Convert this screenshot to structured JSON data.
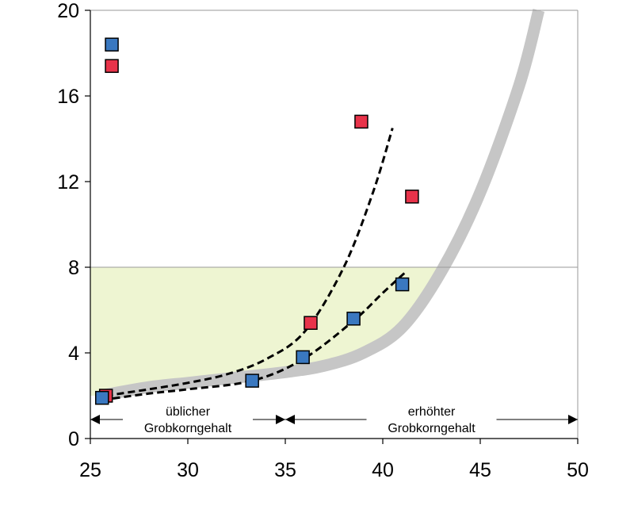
{
  "chart_data": {
    "type": "scatter",
    "title": "",
    "xlabel": "",
    "ylabel": "",
    "xlim": [
      25,
      50
    ],
    "ylim": [
      0,
      20
    ],
    "x_ticks": [
      "25",
      "30",
      "35",
      "40",
      "45",
      "50"
    ],
    "y_ticks": [
      "0",
      "4",
      "8",
      "12",
      "16",
      "20"
    ],
    "grid": false,
    "colors": {
      "red_marker": "#e8334a",
      "blue_marker": "#3a78c0",
      "shaded_region": "#eef5d2",
      "gray_boundary": "#c6c6c6",
      "dashed_fit": "#000000"
    },
    "series": [
      {
        "marker": "red-square",
        "points": [
          [
            25.8,
            2.0
          ],
          [
            26.1,
            17.4
          ],
          [
            36.3,
            5.4
          ],
          [
            38.9,
            14.8
          ],
          [
            41.5,
            11.3
          ]
        ]
      },
      {
        "marker": "blue-square",
        "points": [
          [
            25.6,
            1.9
          ],
          [
            26.1,
            18.4
          ],
          [
            33.3,
            2.7
          ],
          [
            35.9,
            3.8
          ],
          [
            38.5,
            5.6
          ],
          [
            41.0,
            7.2
          ]
        ]
      }
    ],
    "dashed_curves": [
      [
        [
          25.8,
          2.0
        ],
        [
          28,
          2.3
        ],
        [
          30,
          2.6
        ],
        [
          32,
          3.0
        ],
        [
          34,
          3.7
        ],
        [
          36,
          5.0
        ],
        [
          38,
          8.0
        ],
        [
          39.5,
          11.5
        ],
        [
          40.5,
          14.5
        ]
      ],
      [
        [
          25.6,
          1.8
        ],
        [
          28,
          2.1
        ],
        [
          30,
          2.3
        ],
        [
          33.3,
          2.7
        ],
        [
          35.9,
          3.7
        ],
        [
          38.5,
          5.5
        ],
        [
          40,
          6.8
        ],
        [
          41.2,
          7.8
        ]
      ]
    ],
    "gray_boundary_curve": [
      [
        25.5,
        2.0
      ],
      [
        28,
        2.4
      ],
      [
        30,
        2.6
      ],
      [
        32,
        2.8
      ],
      [
        35,
        3.1
      ],
      [
        37,
        3.4
      ],
      [
        39,
        4.0
      ],
      [
        41,
        5.2
      ],
      [
        43,
        7.8
      ],
      [
        45,
        11.5
      ],
      [
        47,
        16.5
      ],
      [
        48,
        20
      ]
    ],
    "shaded_region": {
      "x_from": 25,
      "y_top": 8
    },
    "reference_line_y": 8,
    "ranges": [
      {
        "label_line1": "üblicher",
        "label_line2": "Grobkorngehalt",
        "x_from": 25,
        "x_to": 35
      },
      {
        "label_line1": "erhöhter",
        "label_line2": "Grobkorngehalt",
        "x_from": 35,
        "x_to": 50
      }
    ]
  }
}
